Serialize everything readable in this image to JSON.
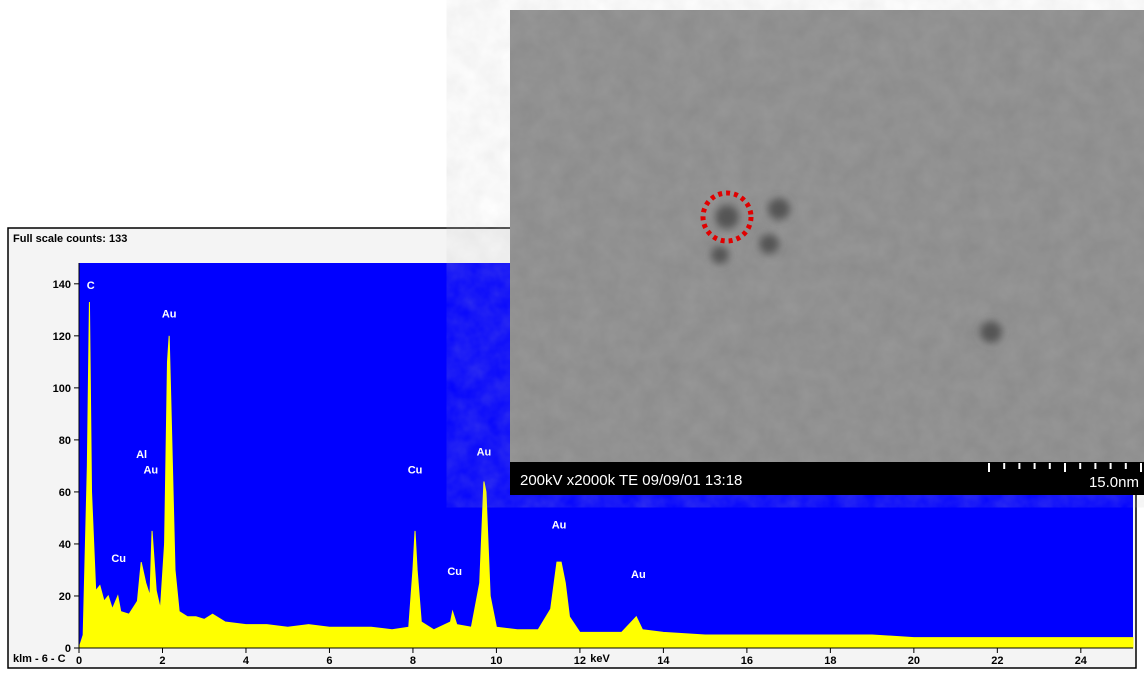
{
  "chart_data": {
    "type": "spectrum",
    "header": "Full scale counts: 133",
    "sample_label": "klm - 6 - C",
    "x_label": "keV",
    "color": "#ffff00",
    "background": "#0000ff",
    "x": [
      0,
      0.1,
      0.2,
      0.25,
      0.3,
      0.4,
      0.5,
      0.6,
      0.7,
      0.8,
      0.93,
      1.0,
      1.2,
      1.4,
      1.49,
      1.6,
      1.7,
      1.75,
      1.85,
      1.95,
      2.05,
      2.12,
      2.16,
      2.2,
      2.3,
      2.4,
      2.6,
      2.8,
      3.0,
      3.2,
      3.5,
      4.0,
      4.5,
      5.0,
      5.5,
      6.0,
      6.5,
      7.0,
      7.5,
      7.9,
      8.0,
      8.05,
      8.1,
      8.2,
      8.5,
      8.9,
      8.95,
      9.05,
      9.4,
      9.6,
      9.7,
      9.75,
      9.85,
      10.0,
      10.5,
      11.0,
      11.3,
      11.45,
      11.55,
      11.65,
      11.75,
      12.0,
      12.5,
      13.0,
      13.35,
      13.5,
      14,
      15,
      16,
      17,
      18,
      19,
      20,
      21,
      22,
      23,
      24,
      25,
      25.25
    ],
    "values": [
      0,
      5,
      70,
      133,
      60,
      22,
      24,
      18,
      20,
      15,
      20,
      14,
      13,
      18,
      33,
      25,
      20,
      45,
      22,
      15,
      40,
      110,
      120,
      95,
      30,
      14,
      12,
      12,
      11,
      13,
      10,
      9,
      9,
      8,
      9,
      8,
      8,
      8,
      7,
      8,
      30,
      45,
      30,
      10,
      7,
      10,
      14,
      9,
      8,
      25,
      64,
      60,
      20,
      8,
      7,
      7,
      15,
      33,
      33,
      25,
      12,
      6,
      6,
      6,
      12,
      7,
      6,
      5,
      5,
      5,
      5,
      5,
      4,
      4,
      4,
      4,
      4,
      4,
      4
    ],
    "xlim": [
      0,
      25.25
    ],
    "ylim": [
      0,
      148
    ],
    "xticks": [
      0,
      2,
      4,
      6,
      8,
      10,
      12,
      14,
      16,
      18,
      20,
      22,
      24
    ],
    "yticks": [
      0,
      20,
      40,
      60,
      80,
      100,
      120,
      140
    ],
    "annotations": [
      {
        "text": "C",
        "x": 0.28,
        "y": 138
      },
      {
        "text": "Cu",
        "x": 0.95,
        "y": 33
      },
      {
        "text": "Al",
        "x": 1.5,
        "y": 73
      },
      {
        "text": "Au",
        "x": 1.72,
        "y": 67
      },
      {
        "text": "Au",
        "x": 2.16,
        "y": 127
      },
      {
        "text": "Cu",
        "x": 8.05,
        "y": 67
      },
      {
        "text": "Cu",
        "x": 9.0,
        "y": 28
      },
      {
        "text": "Au",
        "x": 9.7,
        "y": 74
      },
      {
        "text": "Au",
        "x": 11.5,
        "y": 46
      },
      {
        "text": "Au",
        "x": 13.4,
        "y": 27
      }
    ]
  },
  "image": {
    "caption": "200kV x2000k TE 09/09/01 13:18",
    "scale": "15.0nm"
  }
}
